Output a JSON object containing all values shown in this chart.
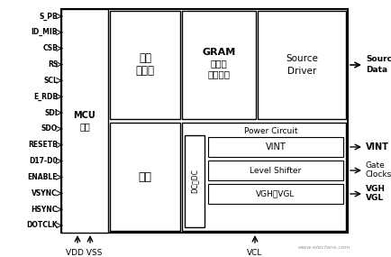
{
  "bg_color": "#ffffff",
  "left_signals": [
    "S_PB",
    "ID_MIB",
    "CSB",
    "RS",
    "SCL",
    "E_RDB",
    "SDI",
    "SDO",
    "RESETB",
    "D17-D0",
    "ENABLE",
    "VSYNC",
    "HSYNC",
    "DOTCLK"
  ],
  "mcu_label": [
    "MCU",
    "接口"
  ],
  "addr_label": [
    "地址",
    "发生器"
  ],
  "gram_label": [
    "GRAM",
    "（图像",
    "存储器）"
  ],
  "source_driver_label": [
    "Source",
    "Driver"
  ],
  "jingzhen_label": "晶振",
  "power_circuit_label": "Power Circuit",
  "dcdc_label": "DC－DC",
  "vint_label": "VINT",
  "level_shifter_label": "Level Shifter",
  "vghvgl_label": "VGH，VGL",
  "bottom_labels": [
    "VDD VSS",
    "VCL"
  ],
  "watermark": "www.elecfans.com"
}
